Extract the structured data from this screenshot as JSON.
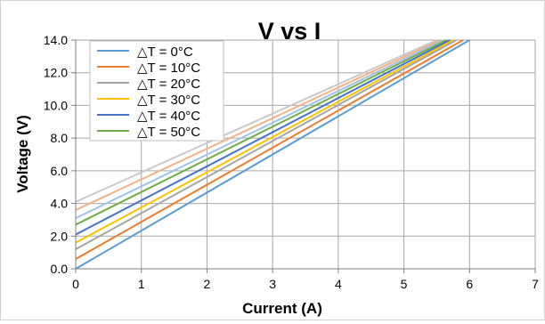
{
  "chart_data": {
    "type": "line",
    "title": "V vs I",
    "xlabel": "Current (A)",
    "ylabel": "Voltage (V)",
    "xlim": [
      0,
      7
    ],
    "ylim": [
      0,
      14
    ],
    "x_ticks": [
      0,
      1,
      2,
      3,
      4,
      5,
      6,
      7
    ],
    "x_tick_labels": [
      "0",
      "1",
      "2",
      "3",
      "4",
      "5",
      "6",
      "7"
    ],
    "y_ticks": [
      0,
      2,
      4,
      6,
      8,
      10,
      12,
      14
    ],
    "y_tick_labels": [
      "0.0",
      "2.0",
      "4.0",
      "6.0",
      "8.0",
      "10.0",
      "12.0",
      "14.0"
    ],
    "grid": true,
    "legend_position": "top-left",
    "series": [
      {
        "name": "△T = 0°C",
        "color": "#5b9bd5",
        "x": [
          0,
          6.0
        ],
        "y": [
          0.0,
          14.0
        ],
        "in_legend": true
      },
      {
        "name": "△T = 10°C",
        "color": "#ed7d31",
        "x": [
          0,
          5.9
        ],
        "y": [
          0.6,
          14.0
        ],
        "in_legend": true
      },
      {
        "name": "△T = 20°C",
        "color": "#a5a5a5",
        "x": [
          0,
          5.8
        ],
        "y": [
          1.2,
          14.0
        ],
        "in_legend": true
      },
      {
        "name": "△T = 30°C",
        "color": "#ffc000",
        "x": [
          0,
          5.75
        ],
        "y": [
          1.6,
          14.0
        ],
        "in_legend": true
      },
      {
        "name": "△T = 40°C",
        "color": "#4472c4",
        "x": [
          0,
          5.7
        ],
        "y": [
          2.1,
          14.0
        ],
        "in_legend": true
      },
      {
        "name": "△T = 50°C",
        "color": "#70ad47",
        "x": [
          0,
          5.65
        ],
        "y": [
          2.7,
          14.0
        ],
        "in_legend": true
      },
      {
        "name": "",
        "color": "#9dc3e6",
        "x": [
          0,
          5.6
        ],
        "y": [
          3.1,
          14.0
        ],
        "in_legend": false
      },
      {
        "name": "",
        "color": "#f4b183",
        "x": [
          0,
          5.55
        ],
        "y": [
          3.6,
          14.0
        ],
        "in_legend": false
      },
      {
        "name": "",
        "color": "#c9c9c9",
        "x": [
          0,
          5.5
        ],
        "y": [
          4.1,
          14.0
        ],
        "in_legend": false
      }
    ]
  }
}
